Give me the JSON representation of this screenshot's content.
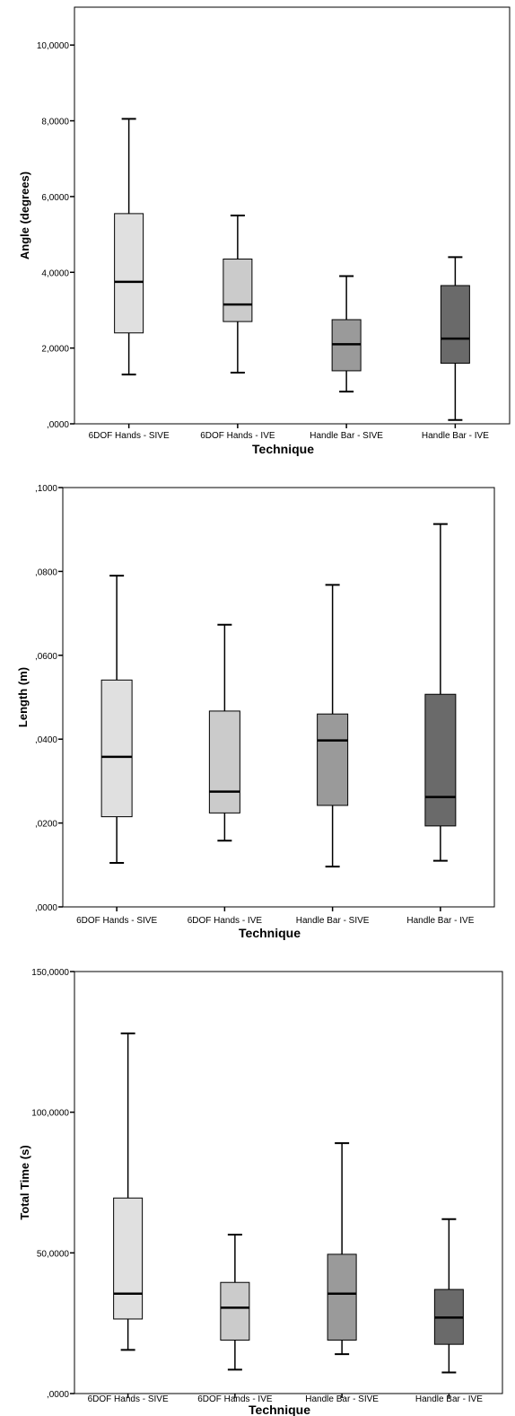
{
  "chart_data": [
    {
      "type": "boxplot",
      "xlabel": "Technique",
      "ylabel": "Angle (degrees)",
      "ylim": [
        0,
        11
      ],
      "yticks": [
        0,
        2,
        4,
        6,
        8,
        10
      ],
      "ytick_labels": [
        ",0000",
        "2,0000",
        "4,0000",
        "6,0000",
        "8,0000",
        "10,0000"
      ],
      "categories": [
        "6DOF Hands - SIVE",
        "6DOF Hands - IVE",
        "Handle Bar - SIVE",
        "Handle Bar - IVE"
      ],
      "boxes": [
        {
          "min": 1.3,
          "q1": 2.4,
          "median": 3.75,
          "q3": 5.55,
          "max": 8.05
        },
        {
          "min": 1.35,
          "q1": 2.7,
          "median": 3.15,
          "q3": 4.35,
          "max": 5.5
        },
        {
          "min": 0.85,
          "q1": 1.4,
          "median": 2.1,
          "q3": 2.75,
          "max": 3.9
        },
        {
          "min": 0.1,
          "q1": 1.6,
          "median": 2.25,
          "q3": 3.65,
          "max": 4.4
        }
      ],
      "colors": [
        "#e0e0e0",
        "#cbcbcb",
        "#9a9a9a",
        "#6a6a6a"
      ],
      "grid": false
    },
    {
      "type": "boxplot",
      "xlabel": "Technique",
      "ylabel": "Length (m)",
      "ylim": [
        0,
        0.1
      ],
      "yticks": [
        0,
        0.02,
        0.04,
        0.06,
        0.08,
        0.1
      ],
      "ytick_labels": [
        ",0000",
        ",0200",
        ",0400",
        ",0600",
        ",0800",
        ",1000"
      ],
      "categories": [
        "6DOF Hands - SIVE",
        "6DOF Hands - IVE",
        "Handle Bar - SIVE",
        "Handle Bar - IVE"
      ],
      "boxes": [
        {
          "min": 0.0105,
          "q1": 0.0215,
          "median": 0.0358,
          "q3": 0.0541,
          "max": 0.079
        },
        {
          "min": 0.0158,
          "q1": 0.0224,
          "median": 0.0275,
          "q3": 0.0467,
          "max": 0.0673
        },
        {
          "min": 0.0096,
          "q1": 0.0242,
          "median": 0.0397,
          "q3": 0.046,
          "max": 0.0768
        },
        {
          "min": 0.011,
          "q1": 0.0193,
          "median": 0.0262,
          "q3": 0.0507,
          "max": 0.0913
        }
      ],
      "colors": [
        "#e0e0e0",
        "#cbcbcb",
        "#9a9a9a",
        "#6a6a6a"
      ],
      "grid": false
    },
    {
      "type": "boxplot",
      "xlabel": "Technique",
      "ylabel": "Total Time (s)",
      "ylim": [
        0,
        150
      ],
      "yticks": [
        0,
        50,
        100,
        150
      ],
      "ytick_labels": [
        ",0000",
        "50,0000",
        "100,0000",
        "150,0000"
      ],
      "categories": [
        "6DOF Hands - SIVE",
        "6DOF Hands - IVE",
        "Handle Bar - SIVE",
        "Handle Bar - IVE"
      ],
      "boxes": [
        {
          "min": 15.5,
          "q1": 26.5,
          "median": 35.5,
          "q3": 69.5,
          "max": 128
        },
        {
          "min": 8.5,
          "q1": 19,
          "median": 30.5,
          "q3": 39.5,
          "max": 56.5
        },
        {
          "min": 14,
          "q1": 19,
          "median": 35.5,
          "q3": 49.5,
          "max": 89
        },
        {
          "min": 7.5,
          "q1": 17.5,
          "median": 27,
          "q3": 37,
          "max": 62
        }
      ],
      "colors": [
        "#e0e0e0",
        "#cbcbcb",
        "#9a9a9a",
        "#6a6a6a"
      ],
      "grid": false
    }
  ]
}
